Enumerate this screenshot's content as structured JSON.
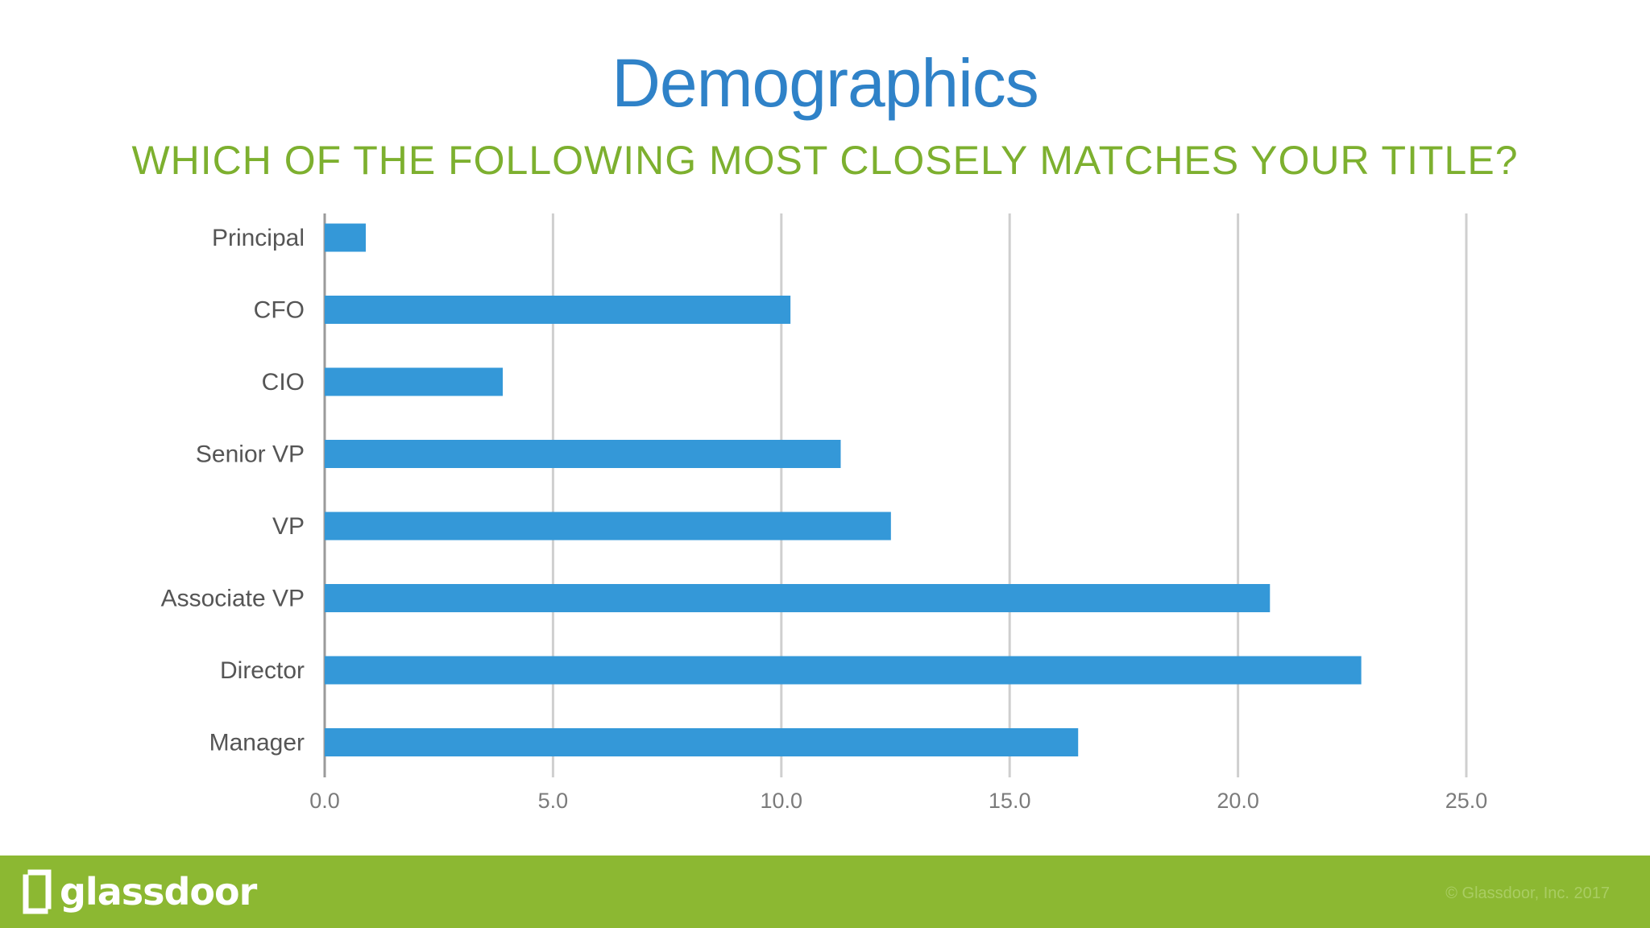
{
  "slide": {
    "title": "Demographics",
    "subtitle": "WHICH OF THE FOLLOWING MOST CLOSELY MATCHES YOUR TITLE?"
  },
  "footer": {
    "logo_text": "glassdoor",
    "copyright": "© Glassdoor, Inc. 2017"
  },
  "colors": {
    "title": "#2f82c8",
    "subtitle": "#7db02f",
    "bar": "#3498d8",
    "grid": "#cfcfcf",
    "footer": "#8cb832"
  },
  "chart_data": {
    "type": "bar",
    "orientation": "horizontal",
    "categories": [
      "Principal",
      "CFO",
      "CIO",
      "Senior VP",
      "VP",
      "Associate VP",
      "Director",
      "Manager"
    ],
    "values": [
      0.9,
      10.2,
      3.9,
      11.3,
      12.4,
      20.7,
      22.7,
      16.5
    ],
    "xlim": [
      0,
      25
    ],
    "ticks": [
      "0.0",
      "5.0",
      "10.0",
      "15.0",
      "20.0",
      "25.0"
    ],
    "tick_values": [
      0,
      5,
      10,
      15,
      20,
      25
    ],
    "grid": true,
    "legend": "none"
  }
}
